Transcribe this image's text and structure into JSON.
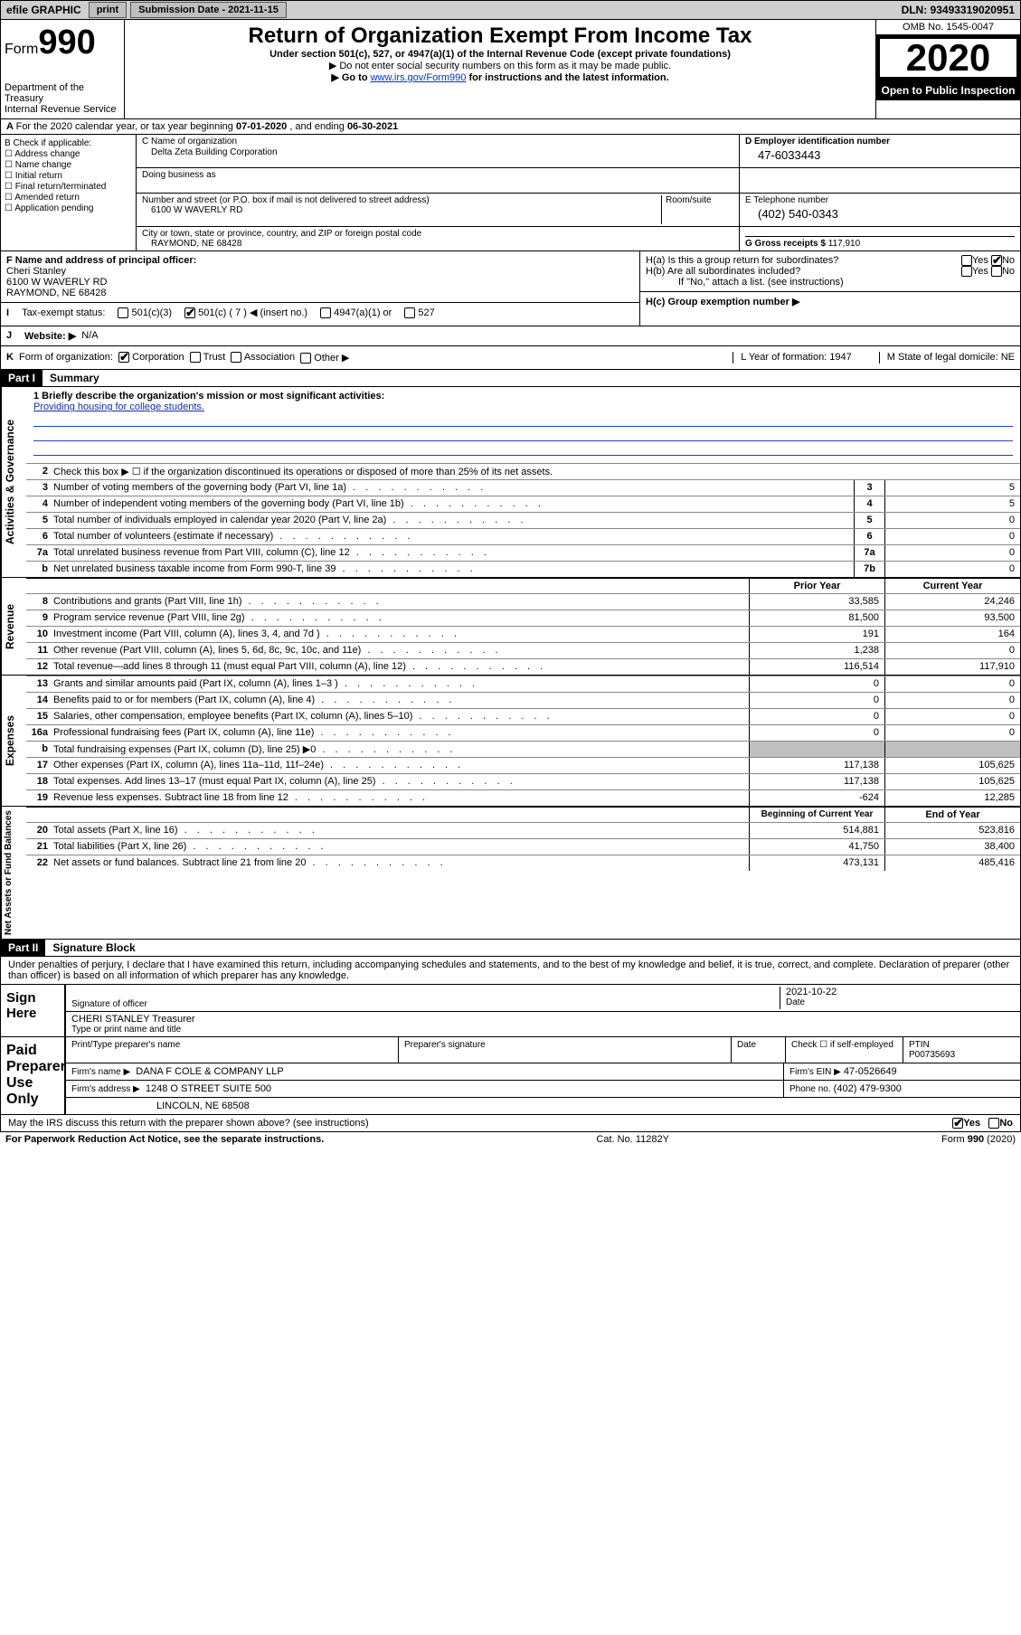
{
  "top": {
    "efile": "efile GRAPHIC",
    "print": "print",
    "sub_label": "Submission Date - 2021-11-15",
    "dln": "DLN: 93493319020951"
  },
  "header": {
    "form_word": "Form",
    "form_num": "990",
    "dept": "Department of the Treasury\nInternal Revenue Service",
    "title": "Return of Organization Exempt From Income Tax",
    "sub1": "Under section 501(c), 527, or 4947(a)(1) of the Internal Revenue Code (except private foundations)",
    "sub2": "▶ Do not enter social security numbers on this form as it may be made public.",
    "sub3_pre": "▶ Go to ",
    "sub3_link": "www.irs.gov/Form990",
    "sub3_post": " for instructions and the latest information.",
    "omb": "OMB No. 1545-0047",
    "year": "2020",
    "open": "Open to Public Inspection"
  },
  "A": {
    "text_pre": "For the 2020 calendar year, or tax year beginning ",
    "beg": "07-01-2020",
    "mid": " , and ending ",
    "end": "06-30-2021"
  },
  "B": {
    "label": "B Check if applicable:",
    "items": [
      "Address change",
      "Name change",
      "Initial return",
      "Final return/terminated",
      "Amended return",
      "Application pending"
    ]
  },
  "C": {
    "name_label": "C Name of organization",
    "name": "Delta Zeta Building Corporation",
    "dba_label": "Doing business as",
    "addr_label": "Number and street (or P.O. box if mail is not delivered to street address)",
    "room_label": "Room/suite",
    "addr": "6100 W WAVERLY RD",
    "city_label": "City or town, state or province, country, and ZIP or foreign postal code",
    "city": "RAYMOND, NE  68428"
  },
  "D": {
    "label": "D Employer identification number",
    "val": "47-6033443"
  },
  "E": {
    "label": "E Telephone number",
    "val": "(402) 540-0343"
  },
  "G": {
    "label": "G Gross receipts $ ",
    "val": "117,910"
  },
  "F": {
    "label": "F  Name and address of principal officer:",
    "name": "Cheri Stanley",
    "addr1": "6100 W WAVERLY RD",
    "addr2": "RAYMOND, NE  68428"
  },
  "H": {
    "a_label": "H(a)  Is this a group return for subordinates?",
    "a_yes": "Yes",
    "a_no": "No",
    "b_label": "H(b)  Are all subordinates included?",
    "b_yes": "Yes",
    "b_no": "No",
    "b_note": "If \"No,\" attach a list. (see instructions)",
    "c_label": "H(c)  Group exemption number ▶"
  },
  "I": {
    "label": "I",
    "text": "Tax-exempt status:",
    "opt1": "501(c)(3)",
    "opt2": "501(c) ( 7 ) ◀ (insert no.)",
    "opt3": "4947(a)(1) or",
    "opt4": "527"
  },
  "J": {
    "label": "J",
    "text": "Website: ▶",
    "val": "N/A"
  },
  "K": {
    "label": "K",
    "text": "Form of organization:",
    "opts": [
      "Corporation",
      "Trust",
      "Association",
      "Other ▶"
    ],
    "L": "L Year of formation: 1947",
    "M": "M State of legal domicile: NE"
  },
  "part1": {
    "hdr": "Part I",
    "title": "Summary",
    "sections": [
      {
        "side": "Activities & Governance",
        "mission_label": "1  Briefly describe the organization's mission or most significant activities:",
        "mission": "Providing housing for college students.",
        "line2": "Check this box ▶ ☐  if the organization discontinued its operations or disposed of more than 25% of its net assets.",
        "lines": [
          {
            "n": "3",
            "d": "Number of voting members of the governing body (Part VI, line 1a)",
            "box": "3",
            "v2": "5"
          },
          {
            "n": "4",
            "d": "Number of independent voting members of the governing body (Part VI, line 1b)",
            "box": "4",
            "v2": "5"
          },
          {
            "n": "5",
            "d": "Total number of individuals employed in calendar year 2020 (Part V, line 2a)",
            "box": "5",
            "v2": "0"
          },
          {
            "n": "6",
            "d": "Total number of volunteers (estimate if necessary)",
            "box": "6",
            "v2": "0"
          },
          {
            "n": "7a",
            "d": "Total unrelated business revenue from Part VIII, column (C), line 12",
            "box": "7a",
            "v2": "0"
          },
          {
            "n": "b",
            "d": "Net unrelated business taxable income from Form 990-T, line 39",
            "box": "7b",
            "v2": "0"
          }
        ]
      },
      {
        "side": "Revenue",
        "hdr1": "Prior Year",
        "hdr2": "Current Year",
        "lines": [
          {
            "n": "8",
            "d": "Contributions and grants (Part VIII, line 1h)",
            "v1": "33,585",
            "v2": "24,246"
          },
          {
            "n": "9",
            "d": "Program service revenue (Part VIII, line 2g)",
            "v1": "81,500",
            "v2": "93,500"
          },
          {
            "n": "10",
            "d": "Investment income (Part VIII, column (A), lines 3, 4, and 7d )",
            "v1": "191",
            "v2": "164"
          },
          {
            "n": "11",
            "d": "Other revenue (Part VIII, column (A), lines 5, 6d, 8c, 9c, 10c, and 11e)",
            "v1": "1,238",
            "v2": "0"
          },
          {
            "n": "12",
            "d": "Total revenue—add lines 8 through 11 (must equal Part VIII, column (A), line 12)",
            "v1": "116,514",
            "v2": "117,910"
          }
        ]
      },
      {
        "side": "Expenses",
        "lines": [
          {
            "n": "13",
            "d": "Grants and similar amounts paid (Part IX, column (A), lines 1–3 )",
            "v1": "0",
            "v2": "0"
          },
          {
            "n": "14",
            "d": "Benefits paid to or for members (Part IX, column (A), line 4)",
            "v1": "0",
            "v2": "0"
          },
          {
            "n": "15",
            "d": "Salaries, other compensation, employee benefits (Part IX, column (A), lines 5–10)",
            "v1": "0",
            "v2": "0"
          },
          {
            "n": "16a",
            "d": "Professional fundraising fees (Part IX, column (A), line 11e)",
            "v1": "0",
            "v2": "0"
          },
          {
            "n": "b",
            "d": "Total fundraising expenses (Part IX, column (D), line 25) ▶0",
            "v1": "",
            "v2": "",
            "shade": true
          },
          {
            "n": "17",
            "d": "Other expenses (Part IX, column (A), lines 11a–11d, 11f–24e)",
            "v1": "117,138",
            "v2": "105,625"
          },
          {
            "n": "18",
            "d": "Total expenses. Add lines 13–17 (must equal Part IX, column (A), line 25)",
            "v1": "117,138",
            "v2": "105,625"
          },
          {
            "n": "19",
            "d": "Revenue less expenses. Subtract line 18 from line 12",
            "v1": "-624",
            "v2": "12,285"
          }
        ]
      },
      {
        "side": "Net Assets or Fund Balances",
        "hdr1": "Beginning of Current Year",
        "hdr2": "End of Year",
        "lines": [
          {
            "n": "20",
            "d": "Total assets (Part X, line 16)",
            "v1": "514,881",
            "v2": "523,816"
          },
          {
            "n": "21",
            "d": "Total liabilities (Part X, line 26)",
            "v1": "41,750",
            "v2": "38,400"
          },
          {
            "n": "22",
            "d": "Net assets or fund balances. Subtract line 21 from line 20",
            "v1": "473,131",
            "v2": "485,416"
          }
        ]
      }
    ]
  },
  "part2": {
    "hdr": "Part II",
    "title": "Signature Block",
    "decl": "Under penalties of perjury, I declare that I have examined this return, including accompanying schedules and statements, and to the best of my knowledge and belief, it is true, correct, and complete. Declaration of preparer (other than officer) is based on all information of which preparer has any knowledge."
  },
  "sign": {
    "left": "Sign Here",
    "sig_of_officer": "Signature of officer",
    "date_label": "Date",
    "date": "2021-10-22",
    "name": "CHERI STANLEY Treasurer",
    "name_label": "Type or print name and title"
  },
  "prep": {
    "left": "Paid Preparer Use Only",
    "h1": "Print/Type preparer's name",
    "h2": "Preparer's signature",
    "h3": "Date",
    "h4_pre": "Check ☐ if self-employed",
    "h5": "PTIN",
    "ptin": "P00735693",
    "firm_label": "Firm's name    ▶",
    "firm": "DANA F COLE & COMPANY LLP",
    "ein_label": "Firm's EIN ▶",
    "ein": "47-0526649",
    "addr_label": "Firm's address ▶",
    "addr1": "1248 O STREET SUITE 500",
    "addr2": "LINCOLN, NE  68508",
    "phone_label": "Phone no.",
    "phone": "(402) 479-9300"
  },
  "discuss": {
    "text": "May the IRS discuss this return with the preparer shown above? (see instructions)",
    "yes": "Yes",
    "no": "No"
  },
  "footer": {
    "left": "For Paperwork Reduction Act Notice, see the separate instructions.",
    "mid": "Cat. No. 11282Y",
    "right": "Form 990 (2020)"
  },
  "colors": {
    "link": "#0033cc",
    "mission": "#1030a0",
    "shade": "#bfbfbf",
    "topbar": "#cfcfcf"
  }
}
